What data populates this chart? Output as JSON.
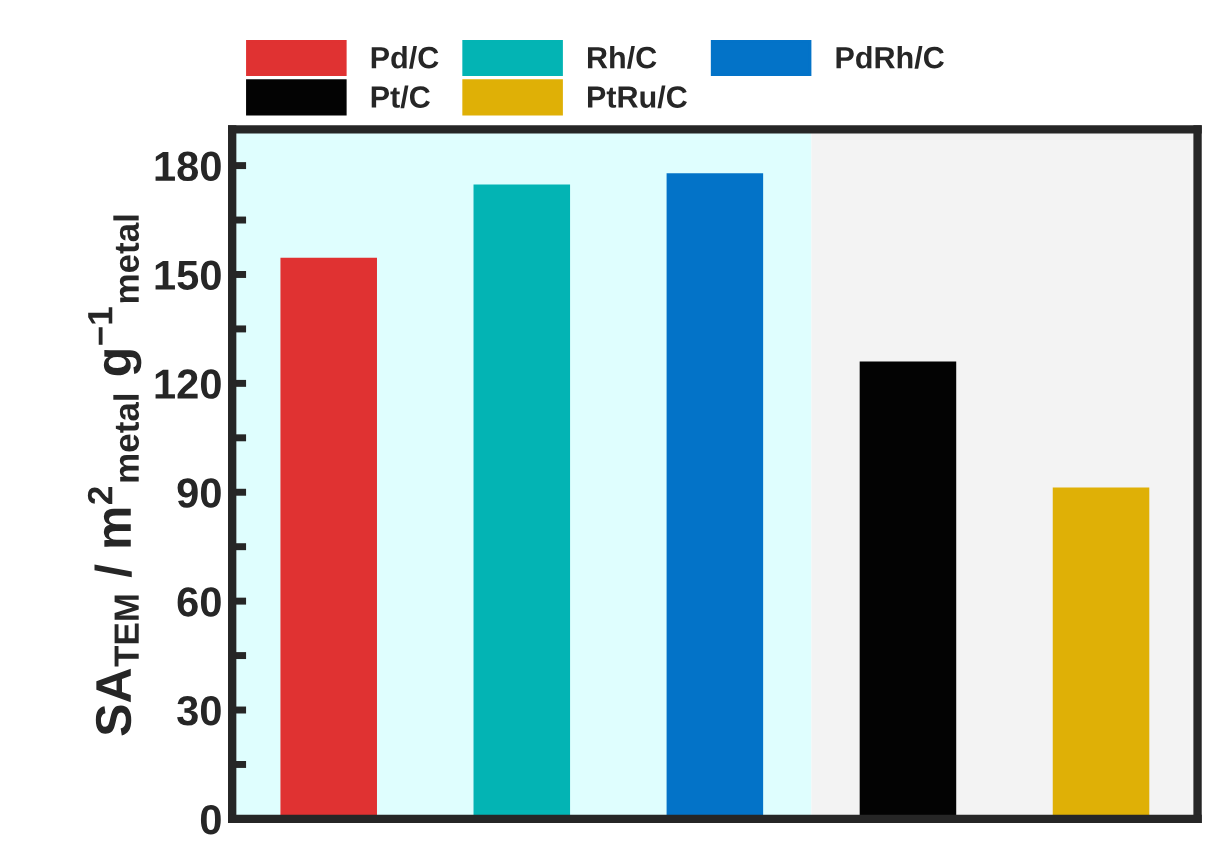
{
  "chart_data": {
    "type": "bar",
    "ylabel": "SA$_{TEM}$ / m$^{2}$$_{metal}$ g$^{−1}$$_{metal}$",
    "categories": [
      null,
      null,
      null,
      null,
      null
    ],
    "series": [
      {
        "name": "Pd/C",
        "color": "#e03232",
        "values": [
          154.6,
          null,
          null,
          null,
          null
        ]
      },
      {
        "name": "Rh/C",
        "color": "#03b4b4",
        "values": [
          null,
          174.8,
          null,
          null,
          null
        ]
      },
      {
        "name": "PdRh/C",
        "color": "#0373c8",
        "values": [
          null,
          null,
          177.9,
          null,
          null
        ]
      },
      {
        "name": "Pt/C",
        "color": "#030303",
        "values": [
          null,
          null,
          null,
          126,
          null
        ]
      },
      {
        "name": "PtRu/C",
        "color": "#dfb006",
        "values": [
          null,
          null,
          null,
          null,
          91.3
        ]
      }
    ],
    "ylim": [
      0,
      190
    ],
    "yticks": [
      0,
      {
        "value": 15,
        "label": null
      },
      30,
      {
        "value": 45,
        "label": null
      },
      60,
      {
        "value": 75,
        "label": null
      },
      90,
      {
        "value": 105,
        "label": null
      },
      120,
      {
        "value": 135,
        "label": null
      },
      150,
      {
        "value": 165,
        "label": null
      },
      180
    ],
    "legend": "top left",
    "grid": false
  }
}
